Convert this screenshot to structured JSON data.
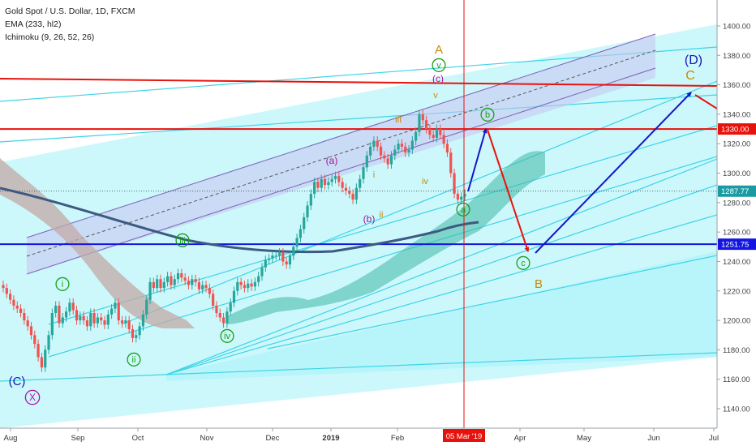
{
  "chart_data": {
    "type": "candlestick",
    "title": "Gold Spot / U.S. Dollar, 1D, FXCM",
    "indicators": [
      "EMA (233, hl2)",
      "Ichimoku (9, 26, 52, 26)"
    ],
    "x_tick_labels": [
      "Aug",
      "Sep",
      "Oct",
      "Nov",
      "Dec",
      "2019",
      "Feb",
      "Mar",
      "Apr",
      "May",
      "Jun",
      "Jul"
    ],
    "y_ticks": [
      1140,
      1160,
      1180,
      1200,
      1220,
      1240,
      1260,
      1280,
      1300,
      1320,
      1340,
      1360,
      1380,
      1400
    ],
    "y_tick_labels": [
      "1140.00",
      "1160.00",
      "1180.00",
      "1200.00",
      "1220.00",
      "1240.00",
      "1260.00",
      "1280.00",
      "1300.00",
      "1320.00",
      "1340.00",
      "1360.00",
      "1380.00",
      "1400.00"
    ],
    "ylim": [
      1130,
      1415
    ],
    "price_badges": [
      {
        "text": "1330.00",
        "value": 1330,
        "color": "#e8120c"
      },
      {
        "text": "1287.77",
        "value": 1287.77,
        "color": "#1a9ba3"
      },
      {
        "text": "1251.75",
        "value": 1251.75,
        "color": "#1515e0"
      }
    ],
    "date_badge": "05 Mar '19",
    "horizontal_levels": [
      {
        "value": 1330,
        "color": "#e8120c"
      },
      {
        "value": 1251.75,
        "color": "#1515e0"
      }
    ],
    "closes": [
      1222,
      1218,
      1214,
      1210,
      1208,
      1205,
      1200,
      1196,
      1190,
      1184,
      1175,
      1168,
      1180,
      1190,
      1205,
      1210,
      1198,
      1202,
      1206,
      1212,
      1207,
      1200,
      1203,
      1200,
      1196,
      1205,
      1198,
      1202,
      1200,
      1197,
      1204,
      1208,
      1212,
      1200,
      1198,
      1200,
      1194,
      1188,
      1190,
      1196,
      1204,
      1214,
      1226,
      1222,
      1228,
      1222,
      1226,
      1230,
      1224,
      1228,
      1232,
      1229,
      1227,
      1224,
      1228,
      1226,
      1221,
      1224,
      1222,
      1218,
      1210,
      1205,
      1202,
      1198,
      1206,
      1212,
      1220,
      1226,
      1224,
      1222,
      1225,
      1223,
      1226,
      1230,
      1236,
      1241,
      1242,
      1244,
      1244,
      1246,
      1240,
      1238,
      1244,
      1250,
      1256,
      1262,
      1270,
      1278,
      1286,
      1294,
      1290,
      1296,
      1292,
      1294,
      1296,
      1298,
      1294,
      1290,
      1288,
      1286,
      1282,
      1290,
      1296,
      1304,
      1312,
      1318,
      1322,
      1318,
      1312,
      1310,
      1306,
      1312,
      1316,
      1320,
      1318,
      1314,
      1316,
      1322,
      1328,
      1340,
      1336,
      1330,
      1326,
      1324,
      1330,
      1326,
      1320,
      1314,
      1300,
      1286,
      1282,
      1284,
      1286
    ],
    "wave_labels": [
      {
        "text": "(C)",
        "color": "#1515b0"
      },
      {
        "text": "X",
        "color": "#b012a8",
        "circled": true
      },
      {
        "text": "i",
        "color": "#16a016",
        "circled": true
      },
      {
        "text": "ii",
        "color": "#16a016",
        "circled": true
      },
      {
        "text": "iii",
        "color": "#16a016",
        "circled": true
      },
      {
        "text": "iv",
        "color": "#16a016",
        "circled": true
      },
      {
        "text": "v",
        "color": "#16a016",
        "circled": true
      },
      {
        "text": "(a)",
        "color": "#a012a0"
      },
      {
        "text": "(b)",
        "color": "#a012a0"
      },
      {
        "text": "(c)",
        "color": "#a012a0"
      },
      {
        "text": "i",
        "color": "#c88a00"
      },
      {
        "text": "ii",
        "color": "#c88a00"
      },
      {
        "text": "iii",
        "color": "#c88a00"
      },
      {
        "text": "iv",
        "color": "#c88a00"
      },
      {
        "text": "v",
        "color": "#c88a00"
      },
      {
        "text": "A",
        "color": "#c88a00"
      },
      {
        "text": "a",
        "color": "#16a016",
        "circled": true
      },
      {
        "text": "b",
        "color": "#16a016",
        "circled": true
      },
      {
        "text": "c",
        "color": "#16a016",
        "circled": true
      },
      {
        "text": "B",
        "color": "#c88a00"
      },
      {
        "text": "(D)",
        "color": "#1515b0"
      },
      {
        "text": "C",
        "color": "#c88a00"
      }
    ],
    "colors": {
      "up": "#26a69a",
      "down": "#ef5350",
      "channel_fill": "#8ff0f8",
      "cloud": "#3fb8a4",
      "ema": "#3d5a80",
      "projection_red": "#e8120c",
      "projection_blue": "#1515c8",
      "vline": "#e8120c"
    }
  }
}
